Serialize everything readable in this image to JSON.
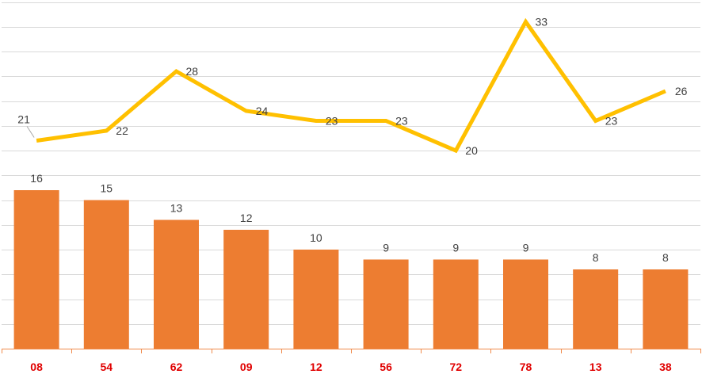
{
  "chart_data": {
    "type": "bar",
    "categories": [
      "08",
      "54",
      "62",
      "09",
      "12",
      "56",
      "72",
      "78",
      "13",
      "38"
    ],
    "series": [
      {
        "type": "bar",
        "color": "#ed7d31",
        "values": [
          16,
          15,
          13,
          12,
          10,
          9,
          9,
          9,
          8,
          8
        ]
      },
      {
        "type": "line",
        "color": "#ffc000",
        "values": [
          21,
          22,
          28,
          24,
          23,
          23,
          20,
          33,
          23,
          26
        ]
      }
    ],
    "title": "",
    "xlabel": "",
    "ylabel": "",
    "ylim": [
      0,
      35
    ],
    "grid": true,
    "legend": "none",
    "category_label_color": "#e00000",
    "axis_color": "#f08a4b",
    "grid_color": "#d9d9d9"
  }
}
